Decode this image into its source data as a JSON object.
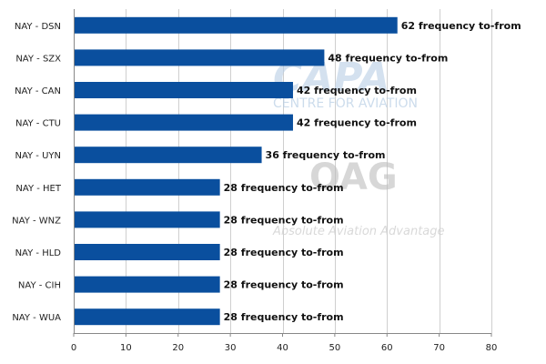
{
  "chart_data": {
    "type": "bar",
    "orientation": "horizontal",
    "categories": [
      "NAY - DSN",
      "NAY - SZX",
      "NAY - CAN",
      "NAY - CTU",
      "NAY - UYN",
      "NAY - HET",
      "NAY - WNZ",
      "NAY - HLD",
      "NAY - CIH",
      "NAY - WUA"
    ],
    "values": [
      62,
      48,
      42,
      42,
      36,
      28,
      28,
      28,
      28,
      28
    ],
    "data_label_suffix": " frequency to-from",
    "xlim": [
      0,
      80
    ],
    "xticks": [
      0,
      10,
      20,
      30,
      40,
      50,
      60,
      70,
      80
    ],
    "grid": "vertical",
    "bar_color": "#0a4f9e",
    "title": "",
    "xlabel": "",
    "ylabel": ""
  },
  "watermarks": {
    "capa": {
      "logo_text": "CAPA",
      "subtitle": "CENTRE FOR AVIATION"
    },
    "oag": {
      "logo_text": "OAG",
      "tagline": "Absolute Aviation Advantage"
    }
  }
}
